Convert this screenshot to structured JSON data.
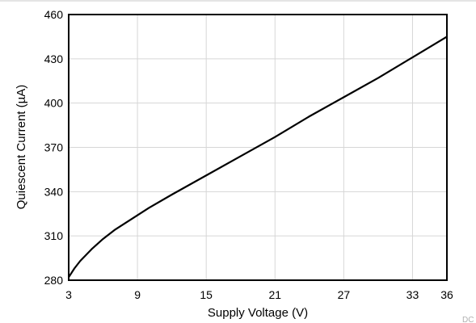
{
  "chart_data": {
    "type": "line",
    "title": "",
    "xlabel": "Supply Voltage (V)",
    "ylabel": "Quiescent Current (µA)",
    "xlim": [
      3,
      36
    ],
    "ylim": [
      280,
      460
    ],
    "x_ticks": [
      3,
      9,
      15,
      21,
      27,
      33,
      36
    ],
    "y_ticks": [
      280,
      310,
      340,
      370,
      400,
      430,
      460
    ],
    "grid": true,
    "series": [
      {
        "x": [
          3,
          3.5,
          4,
          5,
          6,
          7,
          8,
          9,
          10,
          12,
          15,
          18,
          21,
          24,
          27,
          30,
          33,
          36
        ],
        "y": [
          282,
          288,
          293,
          301,
          308,
          314,
          319,
          324,
          329,
          338,
          351,
          364,
          377,
          391,
          404,
          417,
          431,
          445
        ]
      }
    ],
    "watermark": "DC_S"
  }
}
